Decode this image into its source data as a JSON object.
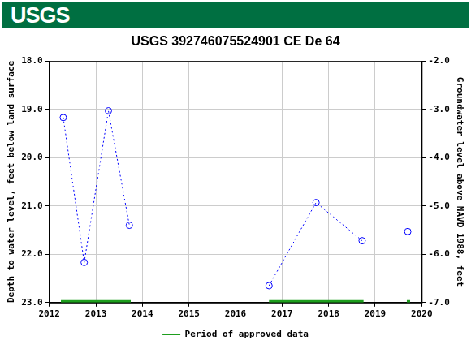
{
  "logo_text": "USGS",
  "chart_data": {
    "type": "line",
    "title": "USGS 392746075524901 CE De 64",
    "y_label": "Depth to water level, feet below land surface",
    "y2_label": "Groundwater level above NAVD 1988, feet",
    "xlim": [
      2012,
      2020
    ],
    "xticks": [
      2012,
      2013,
      2014,
      2015,
      2016,
      2017,
      2018,
      2019,
      2020
    ],
    "ylim": [
      23,
      18
    ],
    "yticks": [
      {
        "value": 18,
        "label": "18.0"
      },
      {
        "value": 19,
        "label": "19.0"
      },
      {
        "value": 20,
        "label": "20.0"
      },
      {
        "value": 21,
        "label": "21.0"
      },
      {
        "value": 22,
        "label": "22.0"
      },
      {
        "value": 23,
        "label": "23.0"
      }
    ],
    "y2lim": [
      -7,
      -2
    ],
    "y2ticks": [
      {
        "value": -2,
        "label": "-2.0"
      },
      {
        "value": -3,
        "label": "-3.0"
      },
      {
        "value": -4,
        "label": "-4.0"
      },
      {
        "value": -5,
        "label": "-5.0"
      },
      {
        "value": -6,
        "label": "-6.0"
      },
      {
        "value": -7,
        "label": "-7.0"
      }
    ],
    "grid": true,
    "legend": "bottom",
    "series": [
      {
        "color": "#0000ff",
        "marker": "circle",
        "line_style": "dotted",
        "x": [
          2012.3,
          2012.75,
          2013.27,
          2013.72,
          null,
          2016.72,
          2017.73,
          2018.72,
          null,
          2019.7
        ],
        "values": [
          19.17,
          22.17,
          19.03,
          21.4,
          null,
          22.65,
          20.93,
          21.72,
          null,
          21.53
        ]
      },
      {
        "name": "Period of approved data",
        "color": "#1e9e1e",
        "marker": "none",
        "line_style": "solid",
        "x": [
          2012.25,
          2013.75,
          null,
          2016.72,
          2018.75,
          null,
          2019.68,
          2019.75
        ],
        "values": [
          23,
          23,
          null,
          23,
          23,
          null,
          23,
          23
        ]
      }
    ]
  }
}
